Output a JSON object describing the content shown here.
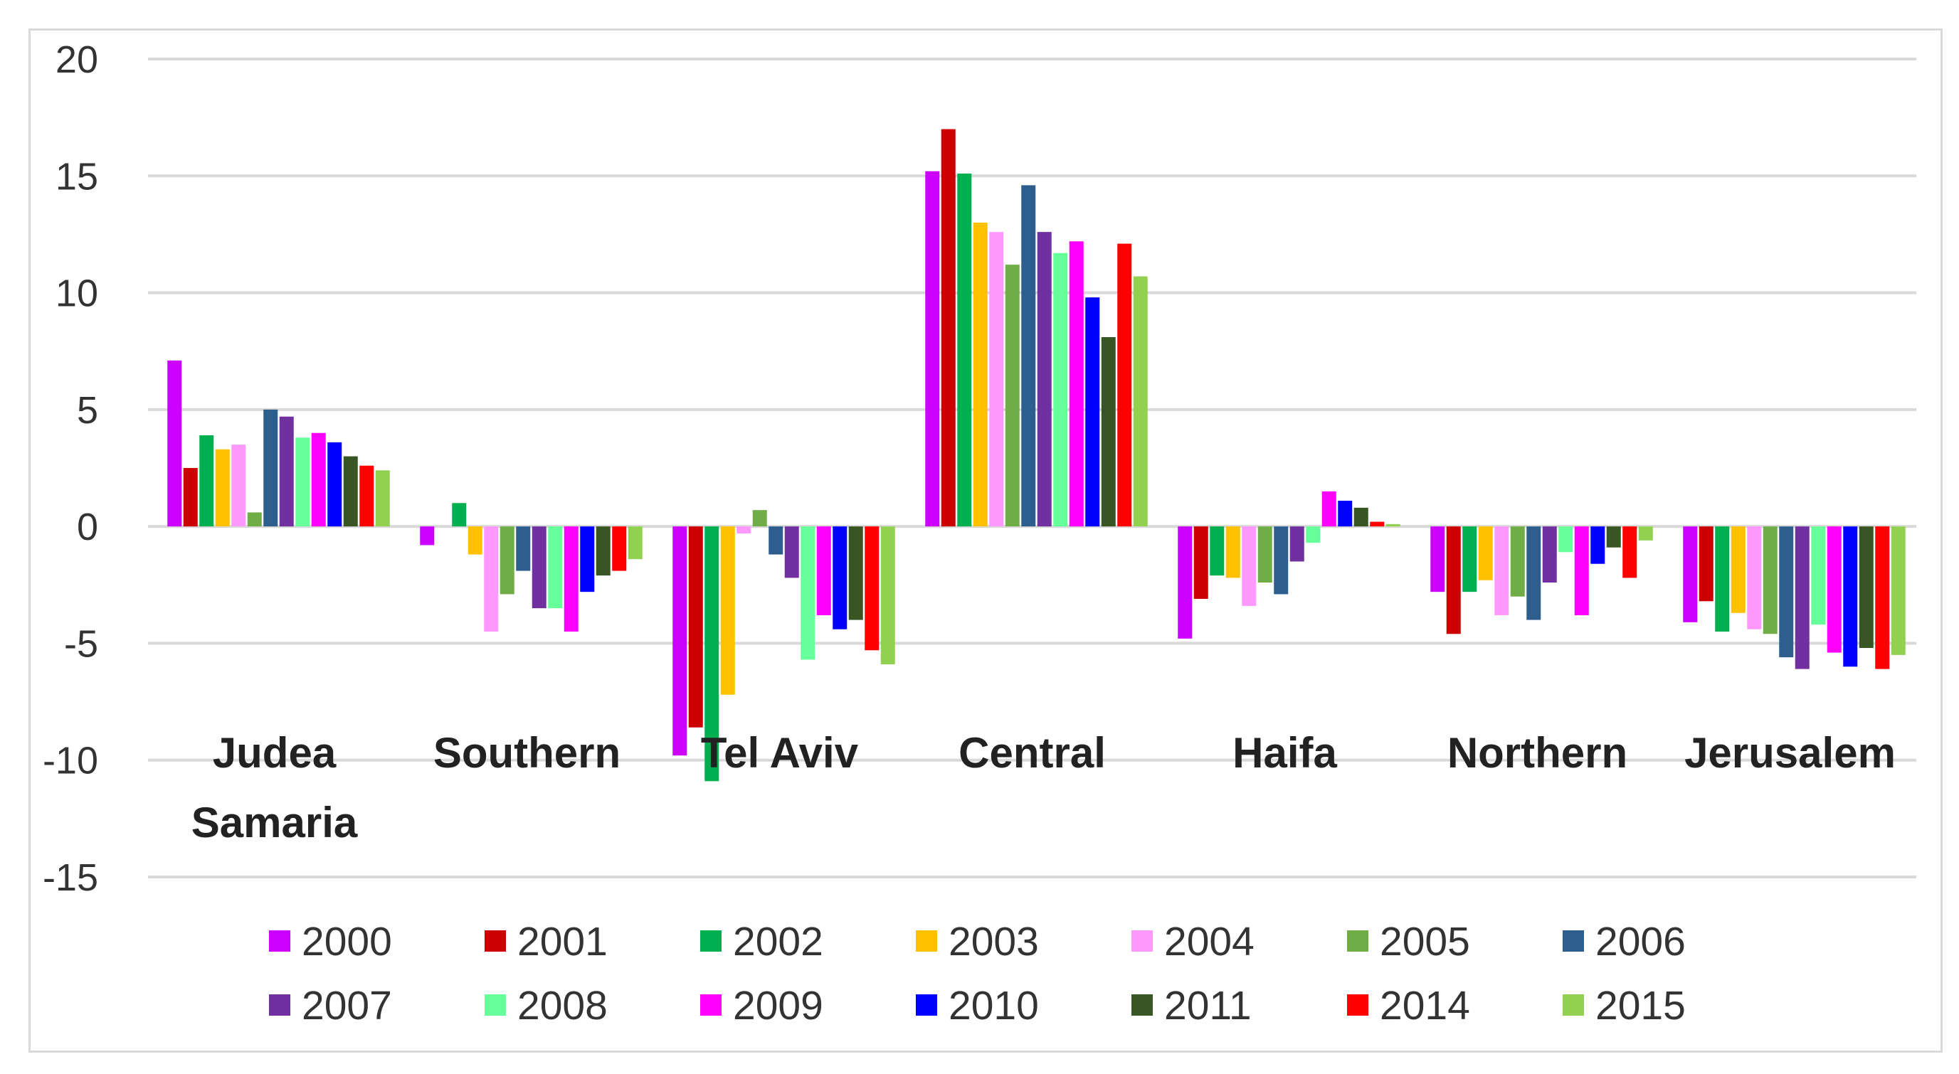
{
  "chart_data": {
    "type": "bar",
    "title": "",
    "xlabel": "",
    "ylabel": "",
    "ylim": [
      -15,
      20
    ],
    "yticks": [
      -15,
      -10,
      -5,
      0,
      5,
      10,
      15,
      20
    ],
    "grid": true,
    "legend_position": "bottom",
    "categories": [
      [
        "Judea",
        "Samaria"
      ],
      [
        "Southern"
      ],
      [
        "Tel Aviv"
      ],
      [
        "Central"
      ],
      [
        "Haifa"
      ],
      [
        "Northern"
      ],
      [
        "Jerusalem"
      ]
    ],
    "series": [
      {
        "name": "2000",
        "color": "#CC00FF",
        "values": [
          7.1,
          -0.8,
          -9.8,
          15.2,
          -4.8,
          -2.8,
          -4.1
        ]
      },
      {
        "name": "2001",
        "color": "#CC0000",
        "values": [
          2.5,
          0,
          -8.6,
          17.0,
          -3.1,
          -4.6,
          -3.2
        ]
      },
      {
        "name": "2002",
        "color": "#00B050",
        "values": [
          3.9,
          1.0,
          -10.9,
          15.1,
          -2.1,
          -2.8,
          -4.5
        ]
      },
      {
        "name": "2003",
        "color": "#FFC000",
        "values": [
          3.3,
          -1.2,
          -7.2,
          13.0,
          -2.2,
          -2.3,
          -3.7
        ]
      },
      {
        "name": "2004",
        "color": "#FF99FF",
        "values": [
          3.5,
          -4.5,
          -0.3,
          12.6,
          -3.4,
          -3.8,
          -4.4
        ]
      },
      {
        "name": "2005",
        "color": "#70AD47",
        "values": [
          0.6,
          -2.9,
          0.7,
          11.2,
          -2.4,
          -3.0,
          -4.6
        ]
      },
      {
        "name": "2006",
        "color": "#2E5E8E",
        "values": [
          5.0,
          -1.9,
          -1.2,
          14.6,
          -2.9,
          -4.0,
          -5.6
        ]
      },
      {
        "name": "2007",
        "color": "#7030A0",
        "values": [
          4.7,
          -3.5,
          -2.2,
          12.6,
          -1.5,
          -2.4,
          -6.1
        ]
      },
      {
        "name": "2008",
        "color": "#66FF99",
        "values": [
          3.8,
          -3.5,
          -5.7,
          11.7,
          -0.7,
          -1.1,
          -4.2
        ]
      },
      {
        "name": "2009",
        "color": "#FF00FF",
        "values": [
          4.0,
          -4.5,
          -3.8,
          12.2,
          1.5,
          -3.8,
          -5.4
        ]
      },
      {
        "name": "2010",
        "color": "#0000FF",
        "values": [
          3.6,
          -2.8,
          -4.4,
          9.8,
          1.1,
          -1.6,
          -6.0
        ]
      },
      {
        "name": "2011",
        "color": "#375623",
        "values": [
          3.0,
          -2.1,
          -4.0,
          8.1,
          0.8,
          -0.9,
          -5.2
        ]
      },
      {
        "name": "2014",
        "color": "#FF0000",
        "values": [
          2.6,
          -1.9,
          -5.3,
          12.1,
          0.2,
          -2.2,
          -6.1
        ]
      },
      {
        "name": "2015",
        "color": "#92D050",
        "values": [
          2.4,
          -1.4,
          -5.9,
          10.7,
          0.1,
          -0.6,
          -5.5
        ]
      }
    ]
  }
}
